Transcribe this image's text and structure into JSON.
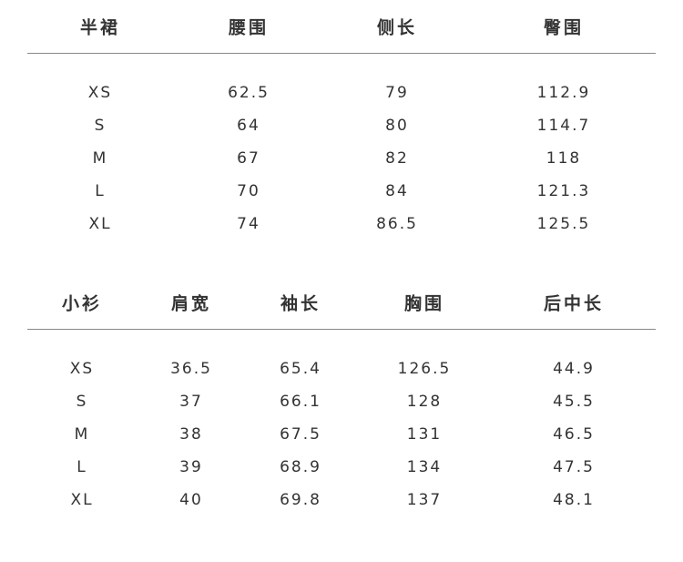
{
  "tables": [
    {
      "headers": [
        "半裙",
        "腰围",
        "侧长",
        "臀围"
      ],
      "rows": [
        [
          "XS",
          "62.5",
          "79",
          "112.9"
        ],
        [
          "S",
          "64",
          "80",
          "114.7"
        ],
        [
          "M",
          "67",
          "82",
          "118"
        ],
        [
          "L",
          "70",
          "84",
          "121.3"
        ],
        [
          "XL",
          "74",
          "86.5",
          "125.5"
        ]
      ]
    },
    {
      "headers": [
        "小衫",
        "肩宽",
        "袖长",
        "胸围",
        "后中长"
      ],
      "rows": [
        [
          "XS",
          "36.5",
          "65.4",
          "126.5",
          "44.9"
        ],
        [
          "S",
          "37",
          "66.1",
          "128",
          "45.5"
        ],
        [
          "M",
          "38",
          "67.5",
          "131",
          "46.5"
        ],
        [
          "L",
          "39",
          "68.9",
          "134",
          "47.5"
        ],
        [
          "XL",
          "40",
          "69.8",
          "137",
          "48.1"
        ]
      ]
    }
  ]
}
